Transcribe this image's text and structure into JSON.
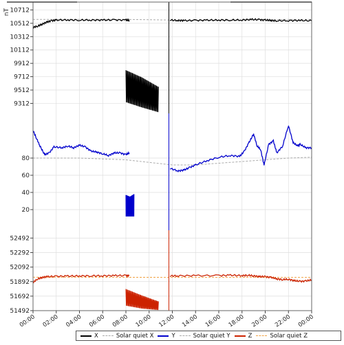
{
  "chart_data": {
    "type": "line",
    "unit_label": "nT",
    "x_ticks": [
      "00:00",
      "02:00",
      "04:00",
      "06:00",
      "08:00",
      "10:00",
      "12:00",
      "14:00",
      "16:00",
      "18:00",
      "20:00",
      "22:00",
      "00:00"
    ],
    "x_range_hours": [
      0,
      24
    ],
    "panels": [
      {
        "component": "X",
        "ticks": [
          "10712",
          "10512",
          "10312",
          "10112",
          "9912",
          "9712",
          "9512",
          "9312"
        ],
        "tick_values": [
          10712,
          10512,
          10312,
          10112,
          9912,
          9712,
          9512,
          9312
        ],
        "ylim": [
          9162,
          10830
        ],
        "series_color": "#000000",
        "quiet_color": "#aaaaaa",
        "segments": [
          {
            "x": [
              0.0,
              0.4,
              0.8,
              1.2,
              1.6,
              2.0,
              3.0,
              4.0,
              5.0,
              6.0,
              7.0,
              8.0,
              8.3
            ],
            "y": [
              10450,
              10470,
              10500,
              10530,
              10550,
              10560,
              10562,
              10560,
              10560,
              10560,
              10562,
              10560,
              10555
            ]
          },
          {
            "x": [
              11.8,
              12.5,
              13,
              14,
              15,
              16,
              17,
              18,
              18.8,
              19.5,
              20,
              20.5,
              21,
              22,
              23,
              24
            ],
            "y": [
              10560,
              10555,
              10552,
              10555,
              10558,
              10560,
              10560,
              10562,
              10570,
              10565,
              10560,
              10555,
              10550,
              10553,
              10555,
              10550
            ]
          }
        ],
        "burst": {
          "x0": 8.0,
          "x1": 10.8,
          "top": [
            9810,
            9700,
            9560
          ],
          "bottom": [
            9330,
            9250,
            9180
          ]
        },
        "quiet": {
          "x": [
            0,
            6,
            8.5,
            10,
            12,
            14,
            16,
            18,
            20,
            22,
            24
          ],
          "y": [
            10570,
            10570,
            10568,
            10565,
            10560,
            10558,
            10558,
            10560,
            10565,
            10568,
            10570
          ]
        }
      },
      {
        "component": "Y",
        "ticks": [
          "80",
          "60",
          "40",
          "20"
        ],
        "tick_values": [
          80,
          60,
          40,
          20
        ],
        "ylim": [
          -4,
          132
        ],
        "series_color": "#0000cc",
        "quiet_color": "#aaaaaa",
        "segments": [
          {
            "x": [
              0.0,
              0.3,
              0.6,
              1.0,
              1.4,
              1.8,
              2.5,
              3.0,
              3.5,
              4.0,
              4.5,
              5.0,
              5.5,
              6.0,
              6.5,
              7.0,
              7.5,
              8.0,
              8.3
            ],
            "y": [
              112,
              103,
              94,
              84,
              86,
              93,
              92,
              94,
              92,
              95,
              93,
              88,
              87,
              85,
              83,
              86,
              86,
              84,
              86
            ]
          },
          {
            "x": [
              11.8,
              12.5,
              13,
              13.5,
              14,
              15,
              16,
              17,
              17.8,
              18.2,
              18.6,
              19,
              19.3,
              19.6,
              19.9,
              20.3,
              20.7,
              21,
              21.5,
              22,
              22.4,
              22.8,
              23,
              23.5,
              24
            ],
            "y": [
              68,
              65,
              66,
              69,
              72,
              77,
              81,
              83,
              82,
              88,
              98,
              108,
              94,
              90,
              72,
              96,
              100,
              86,
              94,
              118,
              98,
              94,
              96,
              92,
              92
            ]
          }
        ],
        "burst": {
          "x0": 8.0,
          "x1": 8.7,
          "top": [
            37,
            35,
            38
          ],
          "bottom": [
            12,
            12,
            12
          ]
        },
        "quiet": {
          "x": [
            0,
            4,
            8,
            10,
            12,
            14,
            16,
            18,
            20,
            22,
            24
          ],
          "y": [
            80,
            80,
            78,
            75,
            72,
            72,
            74,
            76,
            78,
            80,
            81
          ]
        }
      },
      {
        "component": "Z",
        "ticks": [
          "52492",
          "52292",
          "52092",
          "51892",
          "51692",
          "51492"
        ],
        "tick_values": [
          52492,
          52292,
          52092,
          51892,
          51692,
          51492
        ],
        "ylim": [
          51492,
          52600
        ],
        "series_color": "#cc2200",
        "quiet_color": "#f0a040",
        "segments": [
          {
            "x": [
              0.0,
              0.4,
              0.8,
              1.2,
              2,
              3,
              4,
              5,
              6,
              7,
              8,
              8.3
            ],
            "y": [
              51880,
              51930,
              51950,
              51960,
              51965,
              51968,
              51970,
              51972,
              51972,
              51975,
              51975,
              51975
            ]
          },
          {
            "x": [
              11.8,
              12.5,
              14,
              16,
              17,
              18,
              18.5,
              19,
              19.5,
              20,
              20.5,
              21,
              21.5,
              22,
              22.5,
              23,
              23.5,
              24
            ],
            "y": [
              51970,
              51972,
              51975,
              51975,
              51980,
              51975,
              51980,
              51972,
              51960,
              51960,
              51950,
              51930,
              51920,
              51925,
              51905,
              51895,
              51900,
              51915
            ]
          }
        ],
        "burst": {
          "x0": 8.0,
          "x1": 10.8,
          "top": [
            51790,
            51700,
            51620
          ],
          "bottom": [
            51560,
            51520,
            51500
          ]
        },
        "quiet": {
          "x": [
            0,
            6,
            12,
            18,
            24
          ],
          "y": [
            51952,
            51952,
            51950,
            51950,
            51950
          ]
        }
      }
    ],
    "spike": {
      "x": 11.7
    },
    "legend": [
      {
        "label": "X",
        "color": "#000000",
        "style": "solid"
      },
      {
        "label": "Solar quiet X",
        "color": "#aaaaaa",
        "style": "dashed"
      },
      {
        "label": "Y",
        "color": "#0000cc",
        "style": "solid"
      },
      {
        "label": "Solar quiet Y",
        "color": "#aaaaaa",
        "style": "dashed"
      },
      {
        "label": "Z",
        "color": "#cc2200",
        "style": "solid"
      },
      {
        "label": "Solar quiet Z",
        "color": "#f0a040",
        "style": "dashed"
      }
    ],
    "grid": true
  }
}
